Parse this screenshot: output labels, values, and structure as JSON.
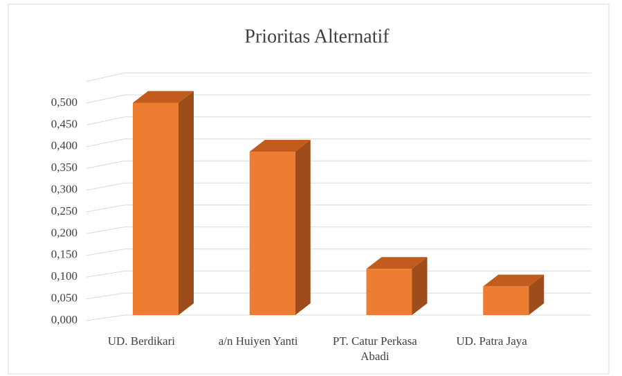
{
  "chart_data": {
    "type": "bar3d",
    "title": "Prioritas Alternatif",
    "categories": [
      "UD. Berdikari",
      "a/n Huiyen Yanti",
      "PT. Catur Perkasa Abadi",
      "UD. Patra Jaya"
    ],
    "values": [
      0.482,
      0.371,
      0.105,
      0.065
    ],
    "color": "#ed7d31",
    "ylim": [
      0,
      0.55
    ],
    "yticks": [
      {
        "value": 0,
        "label": "0,000"
      },
      {
        "value": 0.05,
        "label": "0,050"
      },
      {
        "value": 0.1,
        "label": "0,100"
      },
      {
        "value": 0.15,
        "label": "0,150"
      },
      {
        "value": 0.2,
        "label": "0,200"
      },
      {
        "value": 0.25,
        "label": "0,250"
      },
      {
        "value": 0.3,
        "label": "0,300"
      },
      {
        "value": 0.35,
        "label": "0,350"
      },
      {
        "value": 0.4,
        "label": "0,400"
      },
      {
        "value": 0.45,
        "label": "0,450"
      },
      {
        "value": 0.5,
        "label": "0,500"
      }
    ],
    "grid": true
  }
}
